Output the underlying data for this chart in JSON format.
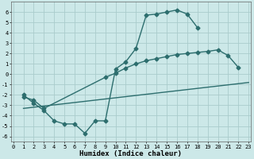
{
  "bg_color": "#cce8e8",
  "grid_color": "#aacccc",
  "line_color": "#2d6e6e",
  "line_width": 1.0,
  "marker": "D",
  "marker_size": 2.5,
  "line1_x": [
    1,
    2,
    3,
    4,
    5,
    6,
    7,
    8,
    9,
    10,
    11,
    12,
    13,
    14,
    15,
    16,
    17,
    18
  ],
  "line1_y": [
    -2.0,
    -2.8,
    -3.5,
    -4.5,
    -4.8,
    -4.8,
    -5.7,
    -4.5,
    -4.5,
    0.5,
    1.2,
    2.5,
    5.7,
    5.8,
    6.0,
    6.2,
    5.8,
    4.5
  ],
  "line2_x": [
    1,
    2,
    3,
    9,
    10,
    11,
    12,
    13,
    14,
    15,
    16,
    17,
    18,
    19,
    20,
    21,
    22
  ],
  "line2_y": [
    -2.2,
    -2.5,
    -3.3,
    -0.3,
    0.1,
    0.6,
    1.0,
    1.3,
    1.5,
    1.7,
    1.9,
    2.0,
    2.1,
    2.2,
    2.35,
    1.8,
    0.65
  ],
  "line3_x": [
    1,
    23
  ],
  "line3_y": [
    -3.3,
    -0.8
  ],
  "xlim": [
    -0.2,
    23.2
  ],
  "ylim": [
    -6.5,
    7.0
  ],
  "xticks": [
    0,
    1,
    2,
    3,
    4,
    5,
    6,
    7,
    8,
    9,
    10,
    11,
    12,
    13,
    14,
    15,
    16,
    17,
    18,
    19,
    20,
    21,
    22,
    23
  ],
  "yticks": [
    -6,
    -5,
    -4,
    -3,
    -2,
    -1,
    0,
    1,
    2,
    3,
    4,
    5,
    6
  ],
  "xlabel": "Humidex (Indice chaleur)",
  "xlabel_fontsize": 6.5,
  "tick_fontsize": 5.0
}
